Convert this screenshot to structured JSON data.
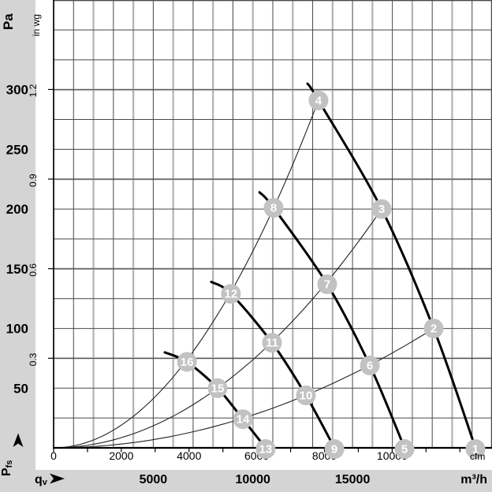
{
  "colors": {
    "margin_gray": "#d4d4d4",
    "plot_bg": "#ffffff",
    "grid_dark": "#474747",
    "grid_light": "#b3b3b3",
    "axis_black": "#000000",
    "fan_curve": "#000000",
    "system_curve": "#222222",
    "point_badge": "#c2c2c2",
    "badge_text": "#ffffff"
  },
  "axes": {
    "y_pa": {
      "unit": "Pa",
      "tick_labels": [
        "50",
        "100",
        "150",
        "200",
        "250",
        "300"
      ],
      "tick_values": [
        50,
        100,
        150,
        200,
        250,
        300
      ],
      "grid_step": 25,
      "range": [
        0,
        375
      ]
    },
    "y_inwg": {
      "unit": "in wg",
      "tick_labels": [
        "0.3",
        "0.6",
        "0.9",
        "1.2"
      ],
      "tick_values": [
        0.3,
        0.6,
        0.9,
        1.2
      ]
    },
    "x_m3h": {
      "unit": "m³/h",
      "tick_labels": [
        "5000",
        "10000",
        "15000"
      ],
      "tick_values": [
        5000,
        10000,
        15000
      ],
      "grid_step": 1000,
      "range": [
        0,
        22000
      ]
    },
    "x_cfm": {
      "unit": "cfm",
      "tick_labels": [
        "0",
        "2000",
        "4000",
        "6000",
        "8000",
        "10000"
      ],
      "tick_values": [
        0,
        2000,
        4000,
        6000,
        8000,
        10000
      ],
      "tick_step": 1000,
      "max_tick": 12000
    },
    "flow_symbol": {
      "main": "q",
      "sub": "v"
    },
    "pressure_symbol": {
      "main": "P",
      "sub": "fs"
    }
  },
  "chart_data": {
    "type": "line",
    "title": "",
    "xlabel": "qv (m³/h)",
    "ylabel": "Pfs (Pa)",
    "x2label": "cfm",
    "y2label": "in wg",
    "xlim": [
      0,
      22000
    ],
    "ylim": [
      0,
      375
    ],
    "grid": "on",
    "legend": "none",
    "fan_curves": [
      {
        "name": "fan-curve-1",
        "points_q_pa": [
          [
            12740,
            305
          ],
          [
            13290,
            291
          ],
          [
            16460,
            200
          ],
          [
            19070,
            100
          ],
          [
            21170,
            0
          ]
        ]
      },
      {
        "name": "fan-curve-2",
        "points_q_pa": [
          [
            10330,
            214
          ],
          [
            11040,
            201
          ],
          [
            13730,
            137
          ],
          [
            15870,
            69
          ],
          [
            17610,
            0
          ]
        ]
      },
      {
        "name": "fan-curve-3",
        "points_q_pa": [
          [
            7910,
            139
          ],
          [
            8900,
            129
          ],
          [
            10960,
            88
          ],
          [
            12660,
            44
          ],
          [
            14090,
            0
          ]
        ]
      },
      {
        "name": "fan-curve-4",
        "points_q_pa": [
          [
            5580,
            80
          ],
          [
            6690,
            72
          ],
          [
            8230,
            50
          ],
          [
            9500,
            24
          ],
          [
            10640,
            0
          ]
        ]
      }
    ],
    "system_curves": [
      {
        "name": "system-curve-a",
        "k_pa_per_q2": 1.648e-06,
        "q_end": 13290
      },
      {
        "name": "system-curve-b",
        "k_pa_per_q2": 7.38e-07,
        "q_end": 16460
      },
      {
        "name": "system-curve-c",
        "k_pa_per_q2": 2.75e-07,
        "q_end": 19070
      }
    ],
    "operating_points": [
      {
        "label": "1",
        "q": 21170,
        "pa": 0
      },
      {
        "label": "2",
        "q": 19070,
        "pa": 100
      },
      {
        "label": "3",
        "q": 16460,
        "pa": 200
      },
      {
        "label": "4",
        "q": 13290,
        "pa": 291
      },
      {
        "label": "5",
        "q": 17610,
        "pa": 0
      },
      {
        "label": "6",
        "q": 15870,
        "pa": 69
      },
      {
        "label": "7",
        "q": 13730,
        "pa": 137
      },
      {
        "label": "8",
        "q": 11040,
        "pa": 201
      },
      {
        "label": "9",
        "q": 14090,
        "pa": 0
      },
      {
        "label": "10",
        "q": 12660,
        "pa": 44
      },
      {
        "label": "11",
        "q": 10960,
        "pa": 88
      },
      {
        "label": "12",
        "q": 8900,
        "pa": 129
      },
      {
        "label": "13",
        "q": 10640,
        "pa": 0
      },
      {
        "label": "14",
        "q": 9500,
        "pa": 24
      },
      {
        "label": "15",
        "q": 8230,
        "pa": 50
      },
      {
        "label": "16",
        "q": 6690,
        "pa": 72
      }
    ]
  }
}
